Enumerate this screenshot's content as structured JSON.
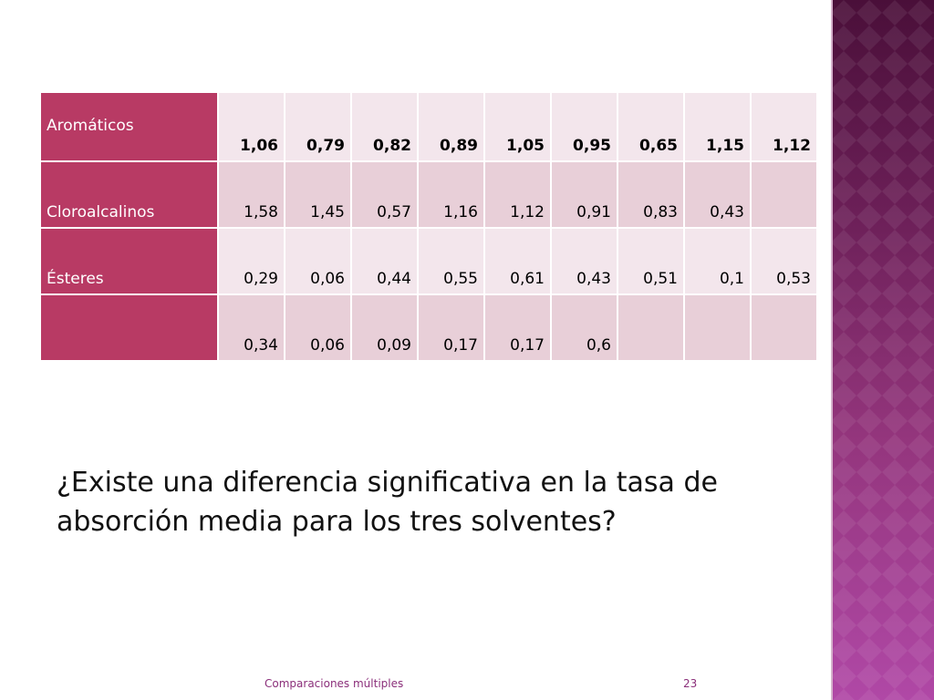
{
  "table": {
    "rows": [
      {
        "label": "Aromáticos",
        "values": [
          "1,06",
          "0,79",
          "0,82",
          "0,89",
          "1,05",
          "0,95",
          "0,65",
          "1,15",
          "1,12"
        ]
      },
      {
        "label": "Cloroalcalinos",
        "values": [
          "1,58",
          "1,45",
          "0,57",
          "1,16",
          "1,12",
          "0,91",
          "0,83",
          "0,43",
          ""
        ]
      },
      {
        "label": "Ésteres",
        "values": [
          "0,29",
          "0,06",
          "0,44",
          "0,55",
          "0,61",
          "0,43",
          "0,51",
          "0,1",
          "0,53"
        ]
      },
      {
        "label": "",
        "values": [
          "0,34",
          "0,06",
          "0,09",
          "0,17",
          "0,17",
          "0,6",
          "",
          "",
          ""
        ]
      }
    ]
  },
  "question": "¿Existe una diferencia significativa en la tasa de absorción media para los tres solventes?",
  "footer": {
    "title": "Comparaciones múltiples",
    "page_number": "23"
  },
  "colors": {
    "label_cell": "#b83a64",
    "value_cell_light": "#f3e6ec",
    "value_cell_dark": "#e8cfd8",
    "side_band": "#6b1f57",
    "footer_text": "#8b2f7a"
  }
}
